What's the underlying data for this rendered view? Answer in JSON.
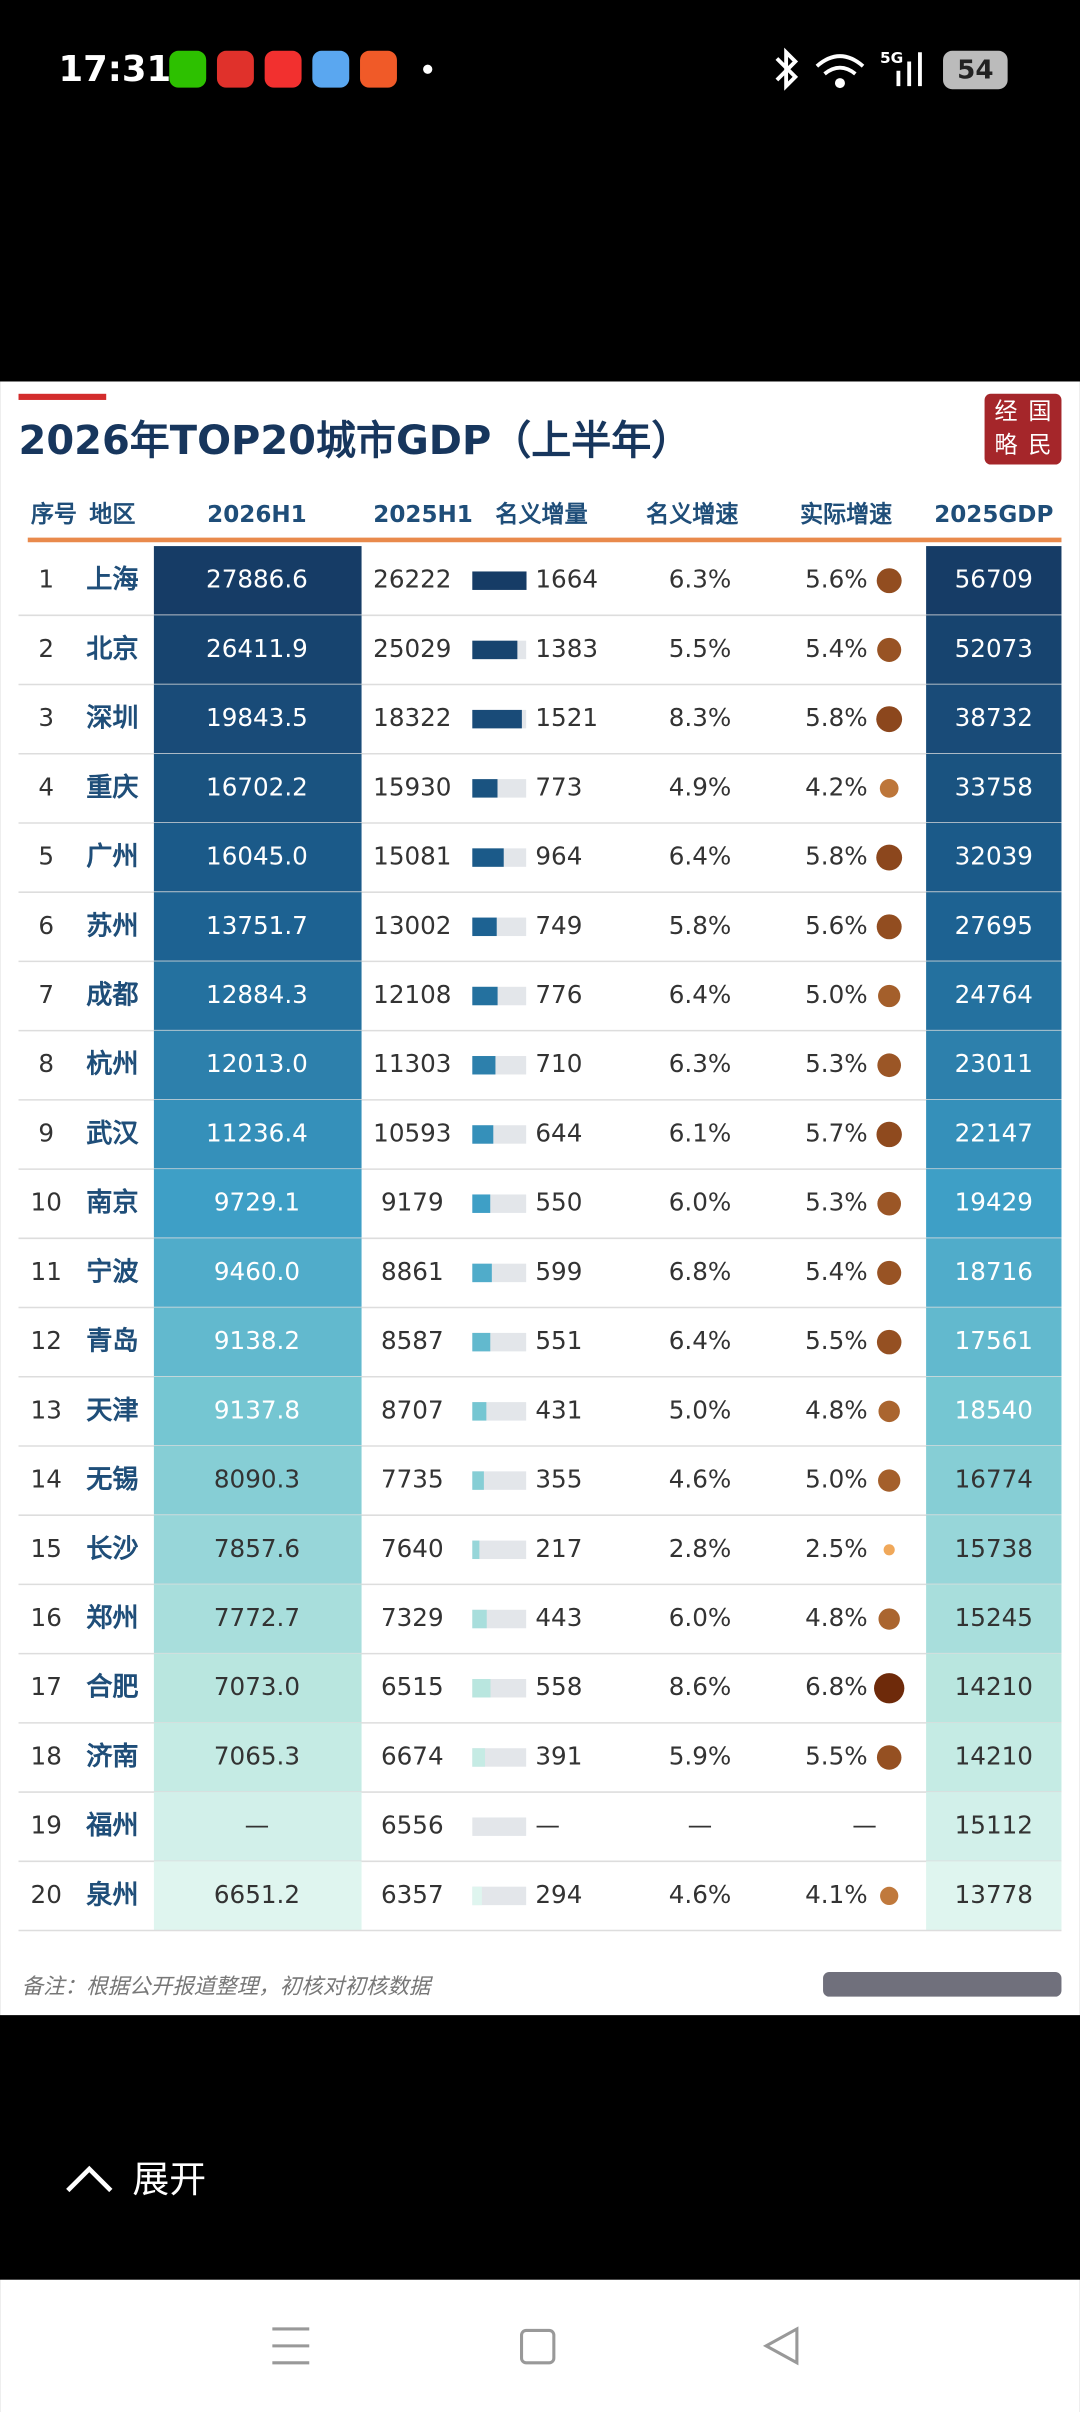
{
  "status_bar": {
    "time": "17:31",
    "network": "5G",
    "battery": "54"
  },
  "article": {
    "title": "2026年TOP20城市GDP（上半年）",
    "logo": [
      "国",
      "民",
      "经",
      "略"
    ],
    "table": {
      "columns": [
        "序号",
        "地区",
        "2026H1",
        "2025H1",
        "名义增量",
        "名义增速",
        "实际增速",
        "2025GDP"
      ],
      "rows": [
        [
          1,
          "上海",
          "27886.6",
          26222,
          1664,
          "6.3%",
          {
            "value": 5.6,
            "label": "5.6%"
          },
          56709
        ],
        [
          2,
          "北京",
          "26411.9",
          25029,
          1383,
          "5.5%",
          {
            "value": 5.4,
            "label": "5.4%"
          },
          52073
        ],
        [
          3,
          "深圳",
          "19843.5",
          18322,
          1521,
          "8.3%",
          {
            "value": 5.8,
            "label": "5.8%"
          },
          38732
        ],
        [
          4,
          "重庆",
          "16702.2",
          15930,
          773,
          "4.9%",
          {
            "value": 4.2,
            "label": "4.2%"
          },
          33758
        ],
        [
          5,
          "广州",
          "16045.0",
          15081,
          964,
          "6.4%",
          {
            "value": 5.8,
            "label": "5.8%"
          },
          32039
        ],
        [
          6,
          "苏州",
          "13751.7",
          13002,
          749,
          "5.8%",
          {
            "value": 5.6,
            "label": "5.6%"
          },
          27695
        ],
        [
          7,
          "成都",
          "12884.3",
          12108,
          776,
          "6.4%",
          {
            "value": 5.0,
            "label": "5.0%"
          },
          24764
        ],
        [
          8,
          "杭州",
          "12013.0",
          11303,
          710,
          "6.3%",
          {
            "value": 5.3,
            "label": "5.3%"
          },
          23011
        ],
        [
          9,
          "武汉",
          "11236.4",
          10593,
          644,
          "6.1%",
          {
            "value": 5.7,
            "label": "5.7%"
          },
          22147
        ],
        [
          10,
          "南京",
          "9729.1",
          9179,
          550,
          "6.0%",
          {
            "value": 5.3,
            "label": "5.3%"
          },
          19429
        ],
        [
          11,
          "宁波",
          "9460.0",
          8861,
          599,
          "6.8%",
          {
            "value": 5.4,
            "label": "5.4%"
          },
          18716
        ],
        [
          12,
          "青岛",
          "9138.2",
          8587,
          551,
          "6.4%",
          {
            "value": 5.5,
            "label": "5.5%"
          },
          17561
        ],
        [
          13,
          "天津",
          "9137.8",
          8707,
          431,
          "5.0%",
          {
            "value": 4.8,
            "label": "4.8%"
          },
          18540
        ],
        [
          14,
          "无锡",
          "8090.3",
          7735,
          355,
          "4.6%",
          {
            "value": 5.0,
            "label": "5.0%"
          },
          16774
        ],
        [
          15,
          "长沙",
          "7857.6",
          7640,
          217,
          "2.8%",
          {
            "value": 2.5,
            "label": "2.5%"
          },
          15738
        ],
        [
          16,
          "郑州",
          "7772.7",
          7329,
          443,
          "6.0%",
          {
            "value": 4.8,
            "label": "4.8%"
          },
          15245
        ],
        [
          17,
          "合肥",
          "7073.0",
          6515,
          558,
          "8.6%",
          {
            "value": 6.8,
            "label": "6.8%"
          },
          14210
        ],
        [
          18,
          "济南",
          "7065.3",
          6674,
          391,
          "5.9%",
          {
            "value": 5.5,
            "label": "5.5%"
          },
          14210
        ],
        [
          19,
          "福州",
          "—",
          6556,
          "—",
          "—",
          "—",
          15112
        ],
        [
          20,
          "泉州",
          "6651.2",
          6357,
          294,
          "4.6%",
          {
            "value": 4.1,
            "label": "4.1%"
          },
          13778
        ]
      ]
    },
    "note": "备注：根据公开报道整理，初核对初核数据"
  },
  "expand": "展开"
}
